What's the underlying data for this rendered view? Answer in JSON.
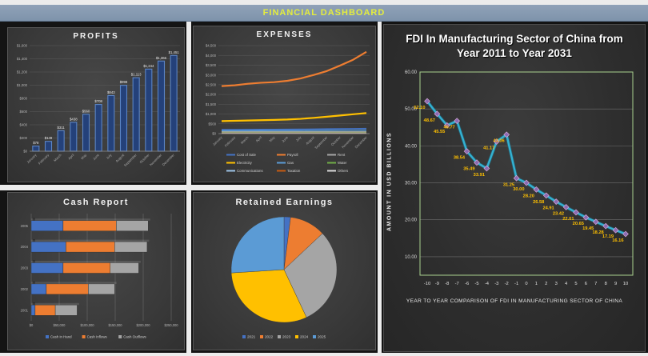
{
  "header": {
    "title": "FINANCIAL DASHBOARD"
  },
  "panels": {
    "profits": {
      "title": "PROFITS"
    },
    "expenses": {
      "title": "EXPENSES"
    },
    "cash_report": {
      "title": "Cash Report"
    },
    "retained_earnings": {
      "title": "Retained Earnings"
    },
    "fdi": {
      "title": "FDI In Manufacturing Sector of China from Year 2011 to Year 2031",
      "ylabel": "AMOUNT IN USD BILLIONS",
      "xlabel": "YEAR TO YEAR COMPARISON OF FDI IN MANUFACTURING SECTOR OF CHINA"
    }
  },
  "chart_data": [
    {
      "id": "profits",
      "type": "bar",
      "title": "PROFITS",
      "categories": [
        "January",
        "February",
        "March",
        "April",
        "May",
        "June",
        "July",
        "August",
        "September",
        "October",
        "November",
        "December"
      ],
      "values": [
        78,
        149,
        311,
        438,
        560,
        708,
        843,
        998,
        1113,
        1244,
        1366,
        1451
      ],
      "value_labels": [
        "$78",
        "$149",
        "$311",
        "$438",
        "$560",
        "$708",
        "$843",
        "$998",
        "$1,113",
        "$1,244",
        "$1,366",
        "$1,451"
      ],
      "ytick_labels": [
        "$0",
        "$200",
        "$400",
        "$600",
        "$800",
        "$1,000",
        "$1,200",
        "$1,400",
        "$1,600"
      ],
      "ylim": [
        0,
        1600
      ],
      "bar_fill": "#24417a",
      "bar_stroke": "#5b84c4",
      "grid": true,
      "legend": "none"
    },
    {
      "id": "expenses",
      "type": "line",
      "title": "EXPENSES",
      "categories": [
        "January",
        "February",
        "March",
        "April",
        "May",
        "June",
        "July",
        "August",
        "September",
        "October",
        "November",
        "December"
      ],
      "series": [
        {
          "name": "Cost of Sale",
          "color": "#4472c4",
          "width": 1.6,
          "values": [
            200,
            204,
            208,
            211,
            214,
            218,
            223,
            229,
            236,
            243,
            251,
            260
          ]
        },
        {
          "name": "Payroll",
          "color": "#ed7d31",
          "width": 2.2,
          "values": [
            2430,
            2470,
            2550,
            2600,
            2630,
            2700,
            2820,
            3000,
            3200,
            3480,
            3780,
            4180
          ]
        },
        {
          "name": "Rent",
          "color": "#a5a5a5",
          "width": 1.2,
          "values": [
            100,
            100,
            100,
            100,
            100,
            100,
            100,
            100,
            100,
            100,
            100,
            100
          ]
        },
        {
          "name": "Electricity",
          "color": "#ffc000",
          "width": 2.2,
          "values": [
            640,
            655,
            670,
            685,
            700,
            720,
            755,
            805,
            865,
            925,
            990,
            1050
          ]
        },
        {
          "name": "Gas",
          "color": "#5b9bd5",
          "width": 1.4,
          "values": [
            150,
            150,
            152,
            153,
            154,
            156,
            158,
            161,
            164,
            167,
            170,
            174
          ]
        },
        {
          "name": "Water",
          "color": "#70ad47",
          "width": 1.2,
          "values": [
            60,
            60,
            60,
            60,
            60,
            60,
            60,
            60,
            60,
            60,
            60,
            60
          ]
        },
        {
          "name": "Communications",
          "color": "#9dc3e6",
          "width": 1.2,
          "values": [
            40,
            40,
            40,
            40,
            40,
            40,
            40,
            40,
            40,
            40,
            40,
            40
          ]
        },
        {
          "name": "Taxation",
          "color": "#c55a11",
          "width": 1.2,
          "values": [
            25,
            25,
            25,
            25,
            25,
            25,
            25,
            25,
            25,
            25,
            25,
            25
          ]
        },
        {
          "name": "Others",
          "color": "#d9d9d9",
          "width": 1.2,
          "values": [
            12,
            12,
            12,
            12,
            12,
            12,
            12,
            12,
            12,
            12,
            12,
            12
          ]
        }
      ],
      "ytick_labels": [
        "$0",
        "$500",
        "$1,000",
        "$1,500",
        "$2,000",
        "$2,500",
        "$3,000",
        "$3,500",
        "$4,000",
        "$4,500"
      ],
      "ylim": [
        0,
        4500
      ],
      "grid": true,
      "legend": "bottom"
    },
    {
      "id": "cash_report",
      "type": "bar-h-stacked",
      "title": "Cash Report",
      "categories": [
        "2001",
        "2002",
        "2003",
        "2004",
        "2005"
      ],
      "series": [
        {
          "name": "Cash in Hand",
          "color": "#4472c4",
          "values": [
            7000,
            27000,
            57000,
            62000,
            57000
          ]
        },
        {
          "name": "Cash Inflows",
          "color": "#ed7d31",
          "values": [
            36000,
            75000,
            84000,
            87000,
            95000
          ]
        },
        {
          "name": "Cash Outflows",
          "color": "#a5a5a5",
          "values": [
            39000,
            47000,
            51000,
            58000,
            57000
          ]
        }
      ],
      "xtick_labels": [
        "$0",
        "$50,000",
        "$100,000",
        "$150,000",
        "$200,000",
        "$250,000"
      ],
      "xlim": [
        0,
        250000
      ],
      "grid": true,
      "legend": "bottom"
    },
    {
      "id": "retained_earnings",
      "type": "pie",
      "title": "Retained Earnings",
      "categories": [
        "2021",
        "2022",
        "2023",
        "2024",
        "2025"
      ],
      "values": [
        2,
        11,
        30,
        31,
        26
      ],
      "colors": [
        "#4472c4",
        "#ed7d31",
        "#a5a5a5",
        "#ffc000",
        "#5b9bd5"
      ],
      "legend": "bottom"
    },
    {
      "id": "fdi",
      "type": "line",
      "title": "FDI In Manufacturing Sector of China from Year 2011 to Year 2031",
      "x": [
        -10,
        -9,
        -8,
        -7,
        -6,
        -5,
        -4,
        -3,
        -2,
        -1,
        0,
        1,
        2,
        3,
        4,
        5,
        6,
        7,
        8,
        9,
        10
      ],
      "values": [
        52.1,
        48.67,
        45.55,
        46.77,
        38.54,
        35.49,
        33.91,
        41.17,
        43.06,
        31.25,
        30.0,
        28.2,
        26.58,
        24.91,
        23.42,
        22.01,
        20.65,
        19.45,
        18.28,
        17.19,
        16.16
      ],
      "ytick_labels": [
        "10.00",
        "20.00",
        "30.00",
        "40.00",
        "50.00",
        "60.00"
      ],
      "yticks": [
        10,
        20,
        30,
        40,
        50,
        60
      ],
      "ylim": [
        5,
        60
      ],
      "xlabel": "YEAR TO YEAR COMPARISON OF FDI IN MANUFACTURING SECTOR OF CHINA",
      "ylabel": "AMOUNT IN USD BILLIONS",
      "line_color": "#33b1d1",
      "marker_color": "#8b6bb1",
      "marker_edge": "#d4a6d8",
      "label_color": "#ffc000",
      "plot_border": "#a9d18e",
      "grid": true,
      "legend": "none"
    }
  ]
}
